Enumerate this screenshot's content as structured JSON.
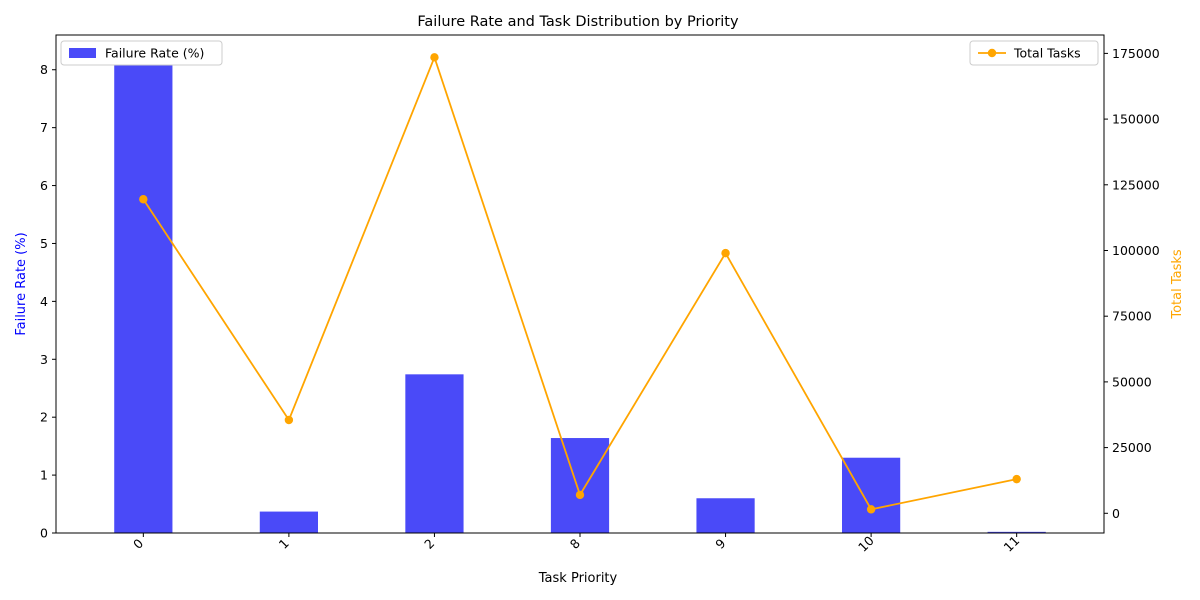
{
  "chart_data": {
    "type": "bar+line",
    "title": "Failure Rate and Task Distribution by Priority",
    "xlabel": "Task Priority",
    "categories": [
      "0",
      "1",
      "2",
      "8",
      "9",
      "10",
      "11"
    ],
    "y_left": {
      "label": "Failure Rate (%)",
      "color": "#0000ff",
      "range": [
        0,
        8.6
      ],
      "ticks": [
        "0",
        "1",
        "2",
        "3",
        "4",
        "5",
        "6",
        "7",
        "8"
      ]
    },
    "y_right": {
      "label": "Total Tasks",
      "color": "#ffa500",
      "range": [
        -7500,
        182000
      ],
      "ticks": [
        "0",
        "25000",
        "50000",
        "75000",
        "100000",
        "125000",
        "150000",
        "175000"
      ]
    },
    "series": [
      {
        "name": "Failure Rate (%)",
        "type": "bar",
        "axis": "left",
        "color": "#4a4af8",
        "values": [
          8.2,
          0.37,
          2.74,
          1.64,
          0.6,
          1.3,
          0.02
        ]
      },
      {
        "name": "Total Tasks",
        "type": "line",
        "axis": "right",
        "color": "#ffa500",
        "values": [
          119500,
          35500,
          173500,
          7000,
          99000,
          1500,
          13000
        ]
      }
    ],
    "legends": [
      {
        "label": "Failure Rate (%)",
        "placement": "top-left"
      },
      {
        "label": "Total Tasks",
        "placement": "top-right"
      }
    ],
    "grid": false
  }
}
